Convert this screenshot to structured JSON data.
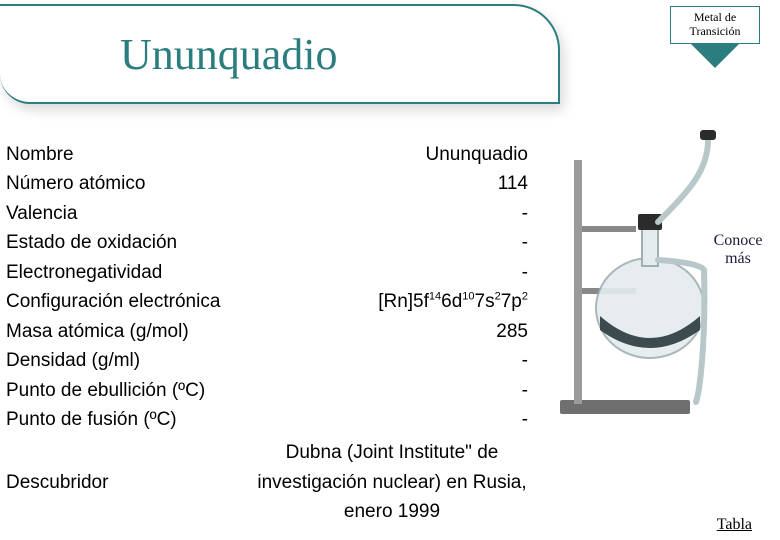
{
  "category": {
    "line1": "Metal de",
    "line2": "Transición",
    "arrow_color": "#2c7d80",
    "border_color": "#2c7d80"
  },
  "header": {
    "title": "Ununquadio",
    "color": "#2c7d80"
  },
  "rows": [
    {
      "label": "Nombre",
      "value": "Ununquadio"
    },
    {
      "label": "Número atómico",
      "value": "114"
    },
    {
      "label": "Valencia",
      "value": "-"
    },
    {
      "label": "Estado de oxidación",
      "value": "-"
    },
    {
      "label": "Electronegatividad",
      "value": "-"
    },
    {
      "label": "Configuración electrónica",
      "value_html": "[Rn]5f<sup>14</sup>6d<sup>10</sup>7s<sup>2</sup>7p<sup>2</sup>"
    },
    {
      "label": "Masa atómica (g/mol)",
      "value": "285"
    },
    {
      "label": "Densidad (g/ml)",
      "value": "-"
    },
    {
      "label": "Punto de ebullición (ºC)",
      "value": "-"
    },
    {
      "label": "Punto de fusión (ºC)",
      "value": "-"
    },
    {
      "label": "Descubridor",
      "value": "Dubna (Joint Institute\" de investigación nuclear) en Rusia, enero 1999",
      "tall": true
    }
  ],
  "cta": {
    "line1": "Conoce",
    "line2": "más"
  },
  "link": {
    "label": "Tabla"
  },
  "colors": {
    "teal": "#2c7d80",
    "text": "#000000",
    "bg": "#ffffff"
  }
}
